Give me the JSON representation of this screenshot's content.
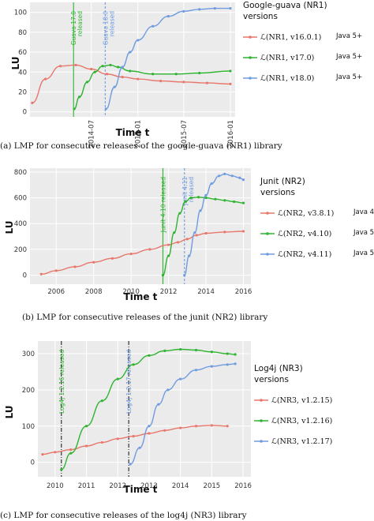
{
  "colors": {
    "red": "#e8776c",
    "green": "#2fb330",
    "blue": "#6f9be0",
    "panel_bg": "#ebebeb",
    "grid": "#ffffff"
  },
  "chart_data": [
    {
      "type": "line",
      "panel_label": "(a)",
      "caption": "LMP for consecutive releases of the google-guava (NR1) library",
      "xlabel": "Time t",
      "ylabel": "LU",
      "x_ticks": [
        "2014-07",
        "2015-01",
        "2015-07",
        "2016-01"
      ],
      "y_ticks": [
        0,
        20,
        40,
        60,
        80,
        100
      ],
      "xlim": [
        "2013-11-01",
        "2016-01-20"
      ],
      "ylim": [
        -5,
        110
      ],
      "legend": {
        "title": "Google-guava (NR1)\nversions",
        "entries": [
          {
            "label": "ℒ(NR1, v16.0.1)",
            "note": "Java 5+",
            "color": "red"
          },
          {
            "label": "ℒ(NR1, v17.0)",
            "note": "Java 5+",
            "color": "green"
          },
          {
            "label": "ℒ(NR1, v18.0)",
            "note": "Java 5+",
            "color": "blue"
          }
        ]
      },
      "release_lines": [
        {
          "label": "Guava 17.0\nreleased",
          "x": "2014-04-22",
          "color": "green",
          "style": "solid"
        },
        {
          "label": "Guava 18.0\nreleased",
          "x": "2014-08-25",
          "color": "blue",
          "style": "dashed"
        }
      ],
      "series": [
        {
          "name": "ℒ(NR1, v16.0.1)",
          "color": "red",
          "x": [
            "2013-11-10",
            "2014-01-01",
            "2014-03-01",
            "2014-05-01",
            "2014-07-01",
            "2014-09-01",
            "2014-11-01",
            "2015-01-01",
            "2015-04-01",
            "2015-07-01",
            "2015-10-01",
            "2016-01-01"
          ],
          "y": [
            9,
            33,
            46,
            47,
            43,
            38,
            35,
            33,
            31,
            30,
            29,
            28
          ]
        },
        {
          "name": "ℒ(NR1, v17.0)",
          "color": "green",
          "x": [
            "2014-04-25",
            "2014-05-15",
            "2014-06-15",
            "2014-07-15",
            "2014-08-15",
            "2014-09-15",
            "2014-10-15",
            "2014-12-01",
            "2015-03-01",
            "2015-06-01",
            "2015-09-01",
            "2016-01-01"
          ],
          "y": [
            3,
            15,
            30,
            40,
            46,
            47,
            45,
            41,
            38,
            38,
            39,
            41
          ]
        },
        {
          "name": "ℒ(NR1, v18.0)",
          "color": "blue",
          "x": [
            "2014-08-28",
            "2014-10-01",
            "2014-11-01",
            "2014-12-01",
            "2015-01-01",
            "2015-03-01",
            "2015-05-01",
            "2015-07-01",
            "2015-09-01",
            "2015-11-01",
            "2016-01-01"
          ],
          "y": [
            3,
            25,
            45,
            60,
            72,
            86,
            96,
            101,
            103,
            104,
            104
          ]
        }
      ]
    },
    {
      "type": "line",
      "panel_label": "(b)",
      "caption": "LMP for consecutive releases of the junit (NR2) library",
      "xlabel": "Time t",
      "ylabel": "LU",
      "x_ticks": [
        2006,
        2008,
        2010,
        2012,
        2014,
        2016
      ],
      "y_ticks": [
        0,
        200,
        400,
        600,
        800
      ],
      "xlim": [
        2004.6,
        2016.4
      ],
      "ylim": [
        -70,
        830
      ],
      "legend": {
        "title": "Junit (NR2)\nversions",
        "entries": [
          {
            "label": "ℒ(NR2, v3.8.1)",
            "note": "Java 4",
            "color": "red"
          },
          {
            "label": "ℒ(NR2, v4.10)",
            "note": "Java 5+",
            "color": "green"
          },
          {
            "label": "ℒ(NR2, v4.11)",
            "note": "Java 5+",
            "color": "blue"
          }
        ]
      },
      "release_lines": [
        {
          "label": "Junit 4.10 released",
          "x": 2011.7,
          "color": "green",
          "style": "solid"
        },
        {
          "label": "Junit 4.11\nreleased",
          "x": 2012.85,
          "color": "blue",
          "style": "dashed"
        }
      ],
      "series": [
        {
          "name": "ℒ(NR2, v3.8.1)",
          "color": "red",
          "x": [
            2005.2,
            2006.0,
            2007.0,
            2008.0,
            2009.0,
            2010.0,
            2011.0,
            2012.0,
            2012.5,
            2013.0,
            2013.5,
            2014.0,
            2015.0,
            2016.0
          ],
          "y": [
            8,
            35,
            65,
            100,
            130,
            165,
            200,
            235,
            255,
            280,
            310,
            325,
            335,
            340
          ]
        },
        {
          "name": "ℒ(NR2, v4.10)",
          "color": "green",
          "x": [
            2011.7,
            2012.0,
            2012.3,
            2012.6,
            2012.9,
            2013.2,
            2013.6,
            2014.0,
            2014.5,
            2015.0,
            2015.5,
            2016.0
          ],
          "y": [
            0,
            150,
            330,
            480,
            570,
            600,
            605,
            600,
            590,
            580,
            570,
            560
          ]
        },
        {
          "name": "ℒ(NR2, v4.11)",
          "color": "blue",
          "x": [
            2012.85,
            2013.1,
            2013.4,
            2013.7,
            2014.0,
            2014.3,
            2014.7,
            2015.0,
            2015.4,
            2015.8,
            2016.0
          ],
          "y": [
            0,
            150,
            330,
            500,
            620,
            710,
            770,
            785,
            770,
            755,
            740
          ]
        }
      ]
    },
    {
      "type": "line",
      "panel_label": "(c)",
      "caption": "LMP for consecutive releases of the log4j (NR3) library",
      "xlabel": "Time t",
      "ylabel": "LU",
      "x_ticks": [
        2010,
        2011,
        2012,
        2013,
        2014,
        2015,
        2016
      ],
      "y_ticks": [
        0,
        100,
        200,
        300
      ],
      "xlim": [
        2009.45,
        2016.25
      ],
      "ylim": [
        -40,
        335
      ],
      "legend": {
        "title": "Log4j (NR3)\nversions",
        "entries": [
          {
            "label": "ℒ(NR3, v1.2.15)",
            "note": "",
            "color": "red"
          },
          {
            "label": "ℒ(NR3, v1.2.16)",
            "note": "",
            "color": "green"
          },
          {
            "label": "ℒ(NR3, v1.2.17)",
            "note": "",
            "color": "blue"
          }
        ]
      },
      "release_lines": [
        {
          "label": "Log4j 1.2.16 released",
          "x": 2010.2,
          "color": "green",
          "style": "dashdot"
        },
        {
          "label": "Log4j 1.2.17 released",
          "x": 2012.35,
          "color": "blue",
          "style": "dashdot"
        }
      ],
      "series": [
        {
          "name": "ℒ(NR3, v1.2.15)",
          "color": "red",
          "x": [
            2009.6,
            2010.0,
            2010.5,
            2011.0,
            2011.5,
            2012.0,
            2012.5,
            2013.0,
            2013.5,
            2014.0,
            2014.5,
            2015.0,
            2015.5
          ],
          "y": [
            22,
            28,
            35,
            45,
            55,
            65,
            72,
            80,
            88,
            95,
            100,
            102,
            100
          ]
        },
        {
          "name": "ℒ(NR3, v1.2.16)",
          "color": "green",
          "x": [
            2010.2,
            2010.5,
            2011.0,
            2011.5,
            2012.0,
            2012.5,
            2013.0,
            2013.5,
            2014.0,
            2014.5,
            2015.0,
            2015.5,
            2015.75
          ],
          "y": [
            -20,
            25,
            100,
            170,
            230,
            270,
            295,
            308,
            312,
            310,
            305,
            300,
            298
          ]
        },
        {
          "name": "ℒ(NR3, v1.2.17)",
          "color": "blue",
          "x": [
            2012.4,
            2012.7,
            2013.0,
            2013.3,
            2013.6,
            2014.0,
            2014.5,
            2015.0,
            2015.5,
            2015.75
          ],
          "y": [
            -5,
            40,
            100,
            160,
            200,
            230,
            255,
            265,
            270,
            272
          ]
        }
      ]
    }
  ]
}
